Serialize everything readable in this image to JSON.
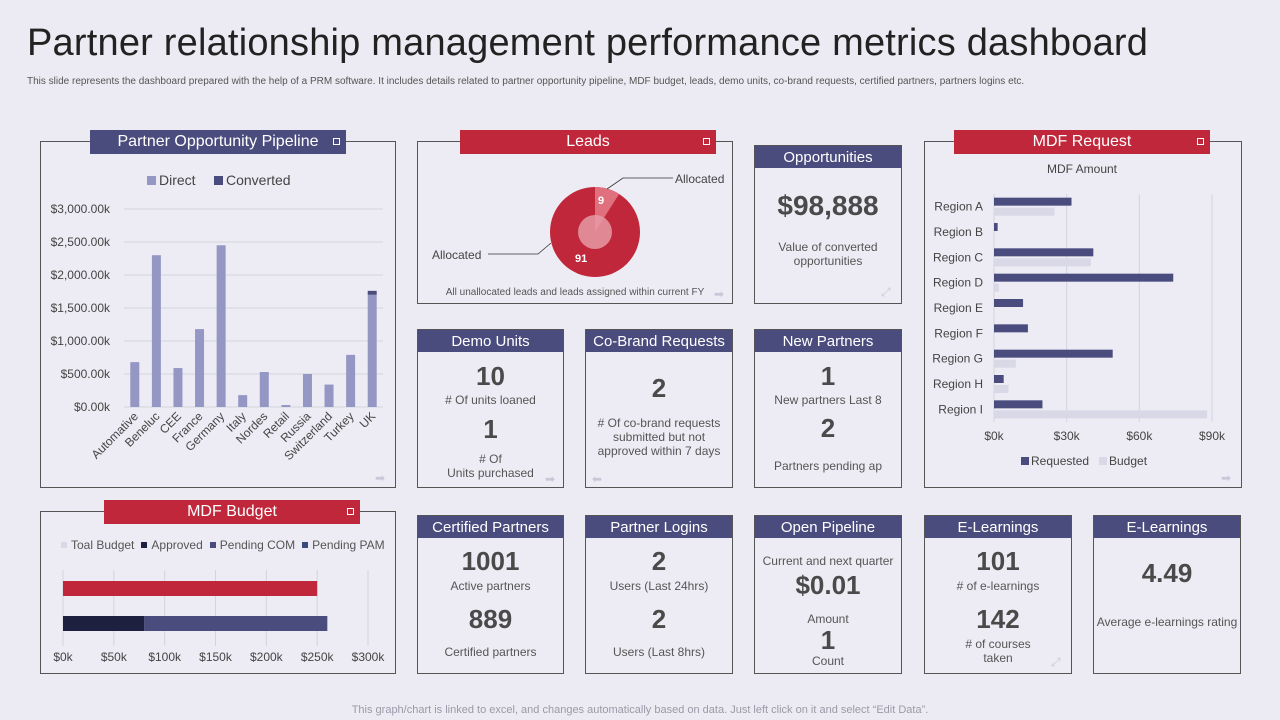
{
  "page": {
    "title": "Partner relationship management performance metrics dashboard",
    "subtitle": "This slide represents the dashboard prepared with the help of a PRM  software. It includes details related to partner opportunity pipeline, MDF  budget, leads, demo units, co-brand requests, certified partners, partners logins etc.",
    "footer": "This graph/chart is linked to excel,  and changes automatically based on data. Just left click on it and select “Edit Data”."
  },
  "colors": {
    "navy": "#4a4c7e",
    "red": "#c0273a",
    "bar": "#9496c4",
    "light": "#d8d8e6",
    "dark": "#1e2040"
  },
  "pipeline": {
    "header": "Partner Opportunity Pipeline",
    "legend": [
      "Direct",
      "Converted"
    ]
  },
  "leads": {
    "header": "Leads",
    "label_top": "Allocated",
    "label_left": "Allocated",
    "value_small": "9",
    "value_large": "91",
    "note": "All unallocated leads and leads assigned within current FY"
  },
  "opportunities": {
    "header": "Opportunities",
    "value": "$98,888",
    "desc": "Value of converted opportunities"
  },
  "mdf_request": {
    "header": "MDF Request",
    "legend": [
      "Requested",
      "Budget"
    ]
  },
  "demo_units": {
    "header": "Demo Units",
    "v1": "10",
    "l1": "# Of units loaned",
    "v2": "1",
    "l2a": "# Of",
    "l2b": "Units purchased"
  },
  "cobrand": {
    "header": "Co-Brand Requests",
    "value": "2",
    "desc1": "# Of co-brand requests",
    "desc2": "submitted but not",
    "desc3": "approved within 7 days"
  },
  "new_partners": {
    "header": "New Partners",
    "v1": "1",
    "l1": "New partners Last 8",
    "v2": "2",
    "l2": "Partners pending ap"
  },
  "mdf_budget": {
    "header": "MDF Budget",
    "legend": [
      "Toal Budget",
      "Approved",
      "Pending COM",
      "Pending PAM"
    ]
  },
  "certified": {
    "header": "Certified Partners",
    "v1": "1001",
    "l1": "Active  partners",
    "v2": "889",
    "l2": "Certified partners"
  },
  "logins": {
    "header": "Partner Logins",
    "v1": "2",
    "l1": "Users (Last 24hrs)",
    "v2": "2",
    "l2": "Users (Last 8hrs)"
  },
  "open_pipeline": {
    "header": "Open Pipeline",
    "l0": "Current and next quarter",
    "v1": "$0.01",
    "l1": "Amount",
    "v2": "1",
    "l2": "Count"
  },
  "elearn1": {
    "header": "E-Learnings",
    "v1": "101",
    "l1": "# of e-learnings",
    "v2": "142",
    "l2a": "# of courses",
    "l2b": "taken"
  },
  "elearn2": {
    "header": "E-Learnings",
    "value": "4.49",
    "desc": "Average e-learnings rating"
  },
  "chart_data": [
    {
      "type": "bar",
      "title": "Partner Opportunity Pipeline",
      "categories": [
        "Automative",
        "Beneluc",
        "CEE",
        "France",
        "Germany",
        "Italy",
        "Nordes",
        "Retail",
        "Russia",
        "Switzerland",
        "Turkey",
        "UK"
      ],
      "series": [
        {
          "name": "Direct",
          "values": [
            680,
            2300,
            590,
            1180,
            2450,
            180,
            530,
            30,
            500,
            340,
            790,
            1700
          ]
        },
        {
          "name": "Converted",
          "values": [
            0,
            0,
            0,
            0,
            0,
            0,
            0,
            0,
            0,
            0,
            0,
            60
          ]
        }
      ],
      "yticks": [
        "$0.00k",
        "$500.00k",
        "$1,000.00k",
        "$1,500.00k",
        "$2,000.00k",
        "$2,500.00k",
        "$3,000.00k"
      ],
      "ylim": [
        0,
        3000
      ]
    },
    {
      "type": "pie",
      "title": "Leads",
      "slices": [
        {
          "label": "Allocated",
          "value": 9
        },
        {
          "label": "Allocated",
          "value": 91
        }
      ]
    },
    {
      "type": "bar",
      "title": "MDF Amount",
      "orientation": "horizontal",
      "categories": [
        "Region A",
        "Region B",
        "Region C",
        "Region D",
        "Region E",
        "Region F",
        "Region G",
        "Region H",
        "Region I"
      ],
      "series": [
        {
          "name": "Requested",
          "values": [
            32,
            1.5,
            41,
            74,
            12,
            14,
            49,
            4,
            20
          ]
        },
        {
          "name": "Budget",
          "values": [
            25,
            0,
            40,
            2,
            0,
            0,
            9,
            6,
            88
          ]
        }
      ],
      "xticks": [
        "$0k",
        "$30k",
        "$60k",
        "$90k"
      ],
      "xlim": [
        0,
        90
      ]
    },
    {
      "type": "bar",
      "title": "MDF Budget",
      "orientation": "horizontal",
      "series": [
        {
          "name": "Toal Budget",
          "values": [
            250
          ]
        },
        {
          "name": "Approved",
          "values": [
            80
          ]
        },
        {
          "name": "Pending COM",
          "values": [
            180
          ]
        },
        {
          "name": "Pending PAM",
          "values": [
            0
          ]
        }
      ],
      "xticks": [
        "$0k",
        "$50k",
        "$100k",
        "$150k",
        "$200k",
        "$250k",
        "$300k"
      ],
      "xlim": [
        0,
        300
      ]
    }
  ]
}
